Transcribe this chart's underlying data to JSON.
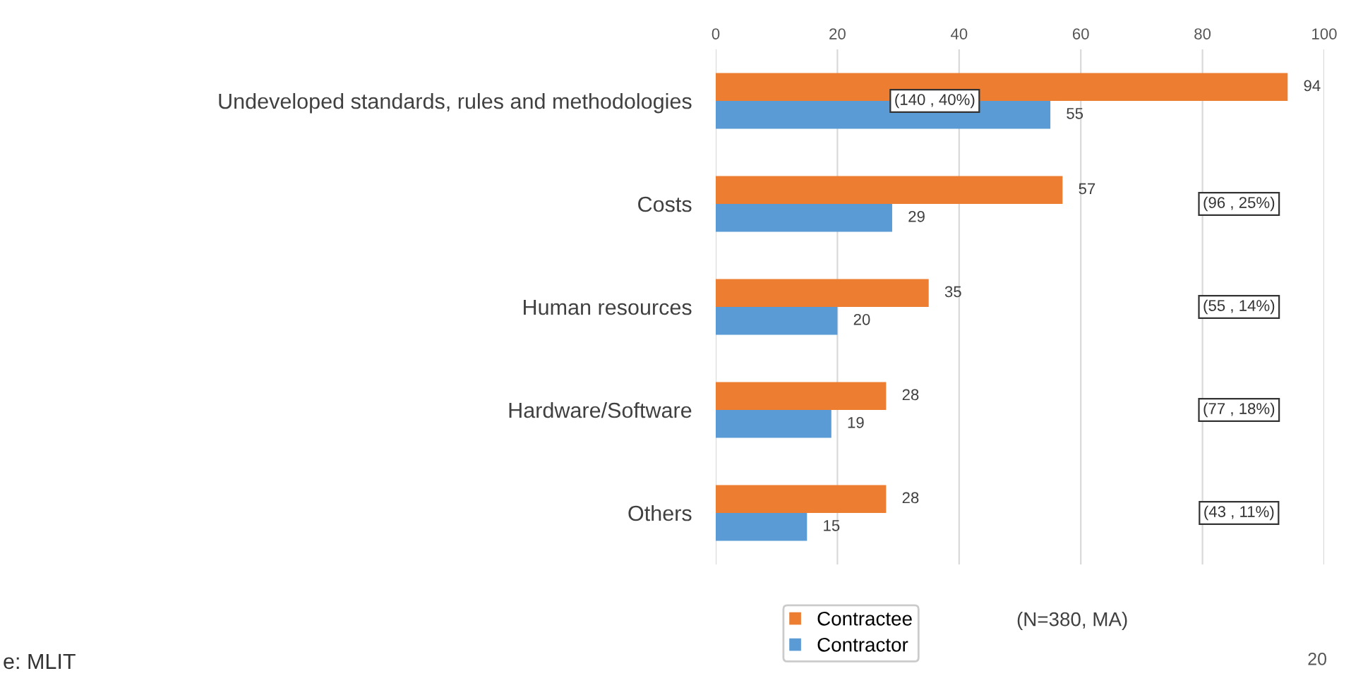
{
  "chart_data": {
    "type": "bar",
    "orientation": "horizontal",
    "categories": [
      "Undeveloped standards, rules and methodologies",
      "Costs",
      "Human resources",
      "Hardware/Software",
      "Others"
    ],
    "series": [
      {
        "name": "Contractee",
        "color": "#ed7d31",
        "values": [
          94,
          57,
          35,
          28,
          28
        ]
      },
      {
        "name": "Contractor",
        "color": "#5b9bd5",
        "values": [
          55,
          29,
          20,
          19,
          15
        ]
      }
    ],
    "xlim": [
      0,
      100
    ],
    "xticks": [
      0,
      20,
      40,
      60,
      80,
      100
    ],
    "grid": "x",
    "data_labels": true,
    "legend": "bottom",
    "annotations": [
      "(140 , 40%)",
      "(96 , 25%)",
      "(55 , 14%)",
      "(77 , 18%)",
      "(43 , 11%)",
      "(N=380, MA)",
      "e: MLIT",
      "20"
    ]
  }
}
